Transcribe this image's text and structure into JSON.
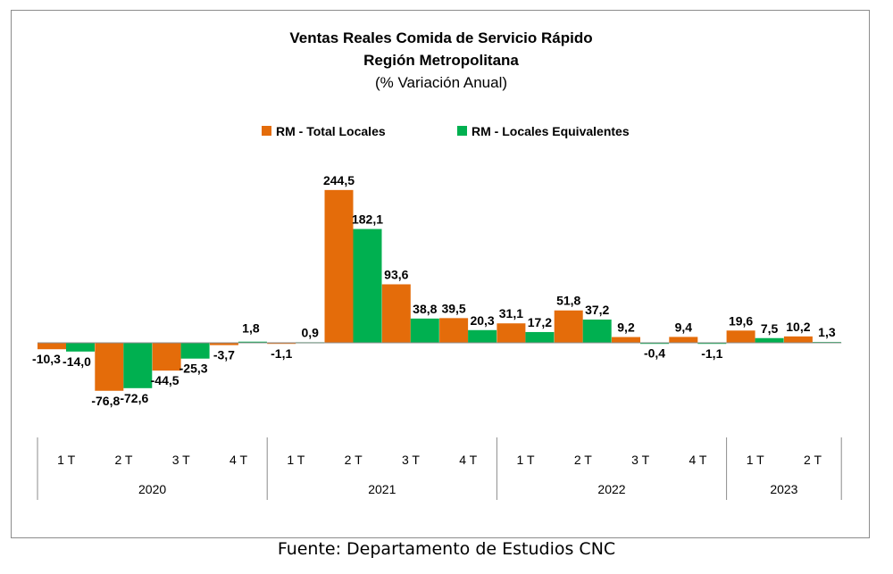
{
  "colors": {
    "total": "#E46C0A",
    "equivalentes": "#00B050",
    "axis": "#8c8c8c"
  },
  "chart_data": {
    "type": "bar",
    "title": "Ventas Reales Comida de Servicio Rápido",
    "title_line2": "Región Metropolitana",
    "subtitle": "(% Variación Anual)",
    "legend_position": "top-center",
    "grid": false,
    "ylim": [
      -85,
      250
    ],
    "categories": [
      "1 T",
      "2 T",
      "3 T",
      "4 T",
      "1 T",
      "2 T",
      "3 T",
      "4 T",
      "1 T",
      "2 T",
      "3 T",
      "4 T",
      "1 T",
      "2 T"
    ],
    "category_groups": [
      {
        "label": "2020",
        "count": 4
      },
      {
        "label": "2021",
        "count": 4
      },
      {
        "label": "2022",
        "count": 4
      },
      {
        "label": "2023",
        "count": 2
      }
    ],
    "series": [
      {
        "name": "RM - Total Locales",
        "values": [
          -10.3,
          -76.8,
          -44.5,
          -3.7,
          -1.1,
          244.5,
          93.6,
          39.5,
          31.1,
          51.8,
          9.2,
          9.4,
          19.6,
          10.2
        ],
        "labels": [
          "-10,3",
          "-76,8",
          "-44,5",
          "-3,7",
          "-1,1",
          "244,5",
          "93,6",
          "39,5",
          "31,1",
          "51,8",
          "9,2",
          "9,4",
          "19,6",
          "10,2"
        ]
      },
      {
        "name": "RM - Locales Equivalentes",
        "values": [
          -14.0,
          -72.6,
          -25.3,
          1.8,
          0.9,
          182.1,
          38.8,
          20.3,
          17.2,
          37.2,
          -0.4,
          -1.1,
          7.5,
          1.3
        ],
        "labels": [
          "-14,0",
          "-72,6",
          "-25,3",
          "1,8",
          "0,9",
          "182,1",
          "38,8",
          "20,3",
          "17,2",
          "37,2",
          "-0,4",
          "-1,1",
          "7,5",
          "1,3"
        ]
      }
    ]
  },
  "source_note": "Fuente: Departamento de Estudios CNC"
}
